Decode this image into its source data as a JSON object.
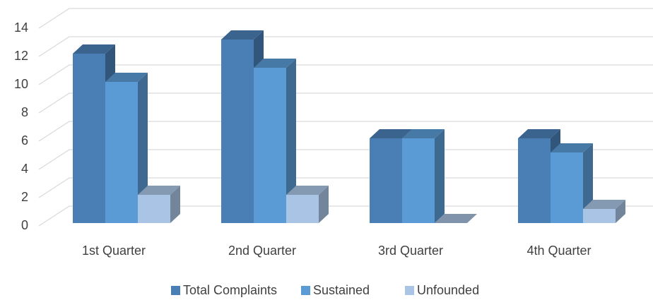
{
  "chart_data": {
    "type": "bar3d",
    "categories": [
      "1st Quarter",
      "2nd Quarter",
      "3rd Quarter",
      "4th Quarter"
    ],
    "series": [
      {
        "name": "Total Complaints",
        "color": "#4a7fb5",
        "values": [
          12,
          13,
          6,
          6
        ]
      },
      {
        "name": "Sustained",
        "color": "#5b9bd5",
        "values": [
          10,
          11,
          6,
          5
        ]
      },
      {
        "name": "Unfounded",
        "color": "#a9c4e4",
        "values": [
          2,
          2,
          0,
          1
        ]
      }
    ],
    "ylim": [
      0,
      14
    ],
    "yticks": [
      0,
      2,
      4,
      6,
      8,
      10,
      12,
      14
    ],
    "grid": true,
    "legend": "bottom"
  }
}
